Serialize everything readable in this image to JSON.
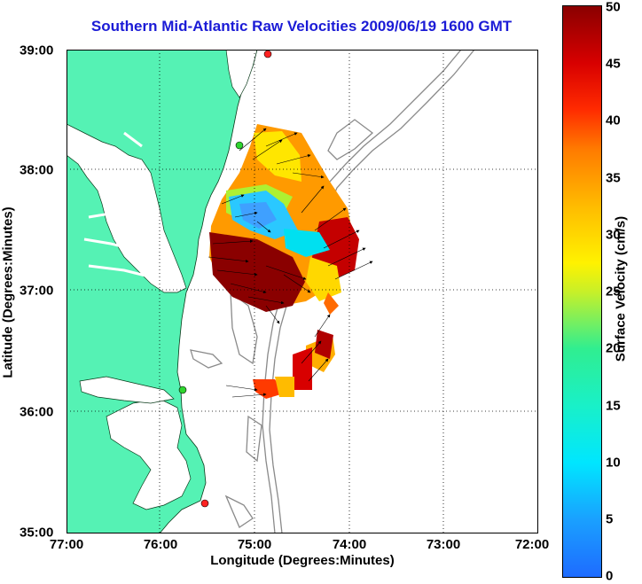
{
  "title": "Southern Mid-Atlantic Raw Velocities 2009/06/19 1600 GMT",
  "x_axis": {
    "label": "Longitude (Degrees:Minutes)",
    "ticks": [
      "77:00",
      "76:00",
      "75:00",
      "74:00",
      "73:00",
      "72:00"
    ]
  },
  "y_axis": {
    "label": "Latitude (Degrees:Minutes)",
    "ticks": [
      "39:00",
      "38:00",
      "37:00",
      "36:00",
      "35:00"
    ]
  },
  "colorbar": {
    "label": "Surface Velocity (cm/s)",
    "ticks": [
      "50",
      "45",
      "40",
      "35",
      "30",
      "25",
      "20",
      "15",
      "10",
      "5",
      "0"
    ],
    "range": [
      0,
      50
    ]
  },
  "colors": {
    "land": "#55f2b4",
    "water": "#ffffff",
    "bathymetry": "#8a8a8a",
    "title": "#1b1bd6",
    "station_green": "#2fd52f",
    "station_red": "#ff2222"
  },
  "map": {
    "lon_range": [
      -77,
      -72
    ],
    "lat_range": [
      35,
      39
    ],
    "grid": "dotted",
    "stations": [
      {
        "lon": -74.85,
        "lat": 39.0,
        "color": "red"
      },
      {
        "lon": -75.15,
        "lat": 38.2,
        "color": "green"
      },
      {
        "lon": -75.85,
        "lat": 36.2,
        "color": "green"
      },
      {
        "lon": -75.55,
        "lat": 35.25,
        "color": "red"
      }
    ]
  }
}
